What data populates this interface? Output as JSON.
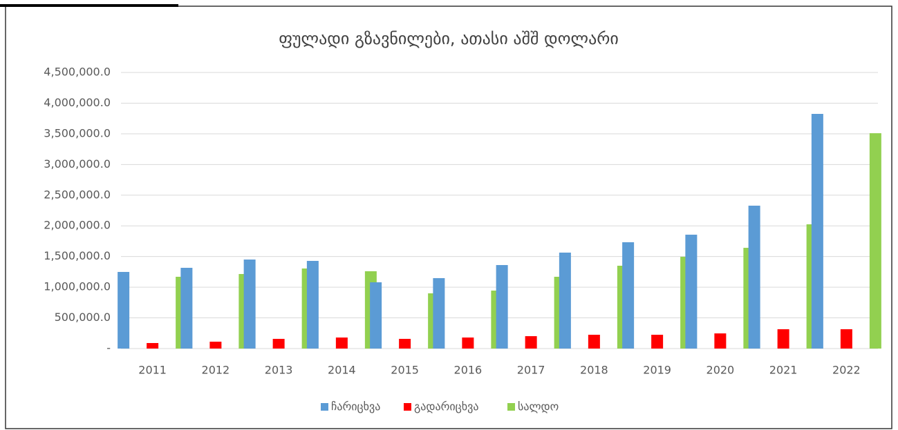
{
  "chart_data": {
    "type": "bar",
    "title": "ფულადი გზავნილები, ათასი აშშ დოლარი",
    "categories": [
      "2011",
      "2012",
      "2013",
      "2014",
      "2015",
      "2016",
      "2017",
      "2018",
      "2019",
      "2020",
      "2021",
      "2022"
    ],
    "series": [
      {
        "name": "ჩარიცხვა",
        "color": "#5b9bd5",
        "values": [
          1249000,
          1316000,
          1451000,
          1429000,
          1080000,
          1148000,
          1361000,
          1564000,
          1733000,
          1856000,
          2329000,
          3825000
        ]
      },
      {
        "name": "გადარიცხვა",
        "color": "#ff0000",
        "values": [
          90000,
          112000,
          158000,
          180000,
          158000,
          180000,
          202000,
          225000,
          225000,
          247000,
          315000,
          315000
        ]
      },
      {
        "name": "სალდო",
        "color": "#92d050",
        "values": [
          1170000,
          1215000,
          1305000,
          1260000,
          900000,
          945000,
          1170000,
          1350000,
          1496000,
          1642000,
          2025000,
          3510000
        ]
      }
    ],
    "ylim": [
      0,
      4500000
    ],
    "yticks": [
      {
        "value": 0,
        "label": "-"
      },
      {
        "value": 500000,
        "label": "500,000.0"
      },
      {
        "value": 1000000,
        "label": "1,000,000.0"
      },
      {
        "value": 1500000,
        "label": "1,500,000.0"
      },
      {
        "value": 2000000,
        "label": "2,000,000.0"
      },
      {
        "value": 2500000,
        "label": "2,500,000.0"
      },
      {
        "value": 3000000,
        "label": "3,000,000.0"
      },
      {
        "value": 3500000,
        "label": "3,500,000.0"
      },
      {
        "value": 4000000,
        "label": "4,000,000.0"
      },
      {
        "value": 4500000,
        "label": "4,500,000.0"
      }
    ],
    "grid": true,
    "legend": "bottom"
  }
}
